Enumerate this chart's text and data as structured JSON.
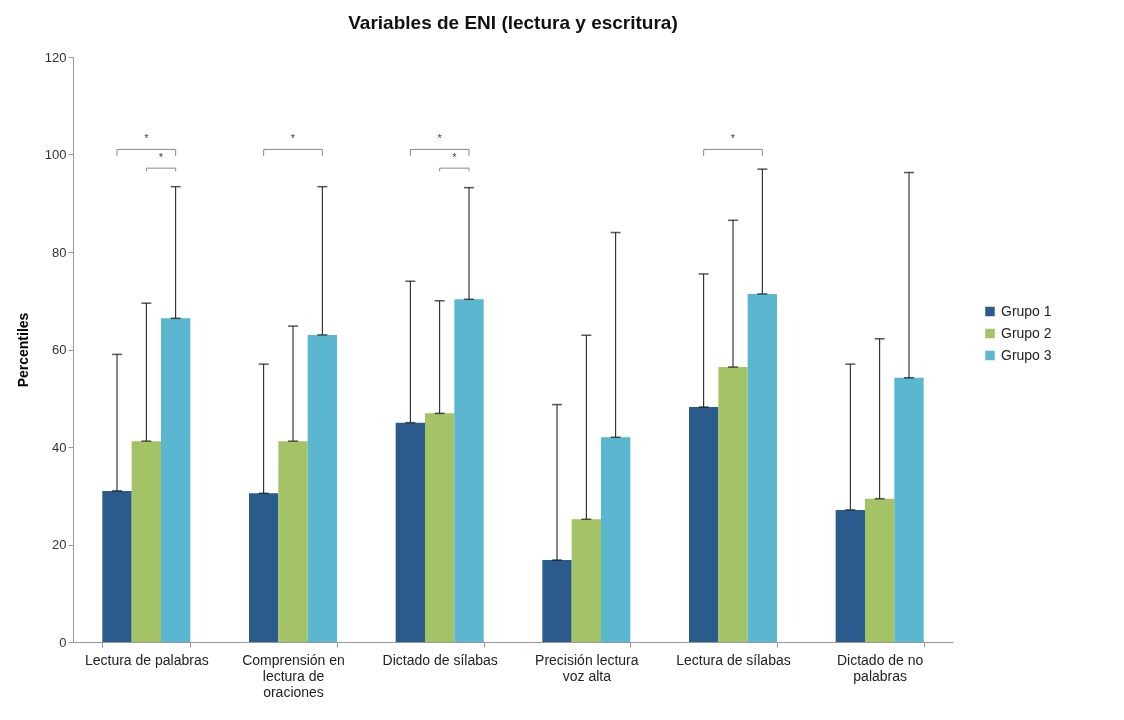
{
  "chart_data": {
    "type": "bar",
    "title": "Variables de ENI (lectura y escritura)",
    "ylabel": "Percentiles",
    "categories": [
      "Lectura de palabras",
      "Comprensión en lectura de oraciones",
      "Dictado de sílabas",
      "Precisión lectura voz alta",
      "Lectura de sílabas",
      "Dictado de no palabras"
    ],
    "series": [
      {
        "name": "Grupo 1",
        "color": "#2b5a8c",
        "values": [
          31,
          30.5,
          45,
          16.8,
          48.2,
          27.1
        ],
        "errors": [
          [
            31,
            59
          ],
          [
            30.5,
            57
          ],
          [
            45,
            74
          ],
          [
            16.8,
            48.7
          ],
          [
            48.2,
            75.5
          ],
          [
            27.1,
            57
          ]
        ]
      },
      {
        "name": "Grupo 2",
        "color": "#a4c266",
        "values": [
          41.2,
          41.2,
          46.9,
          25.2,
          56.4,
          29.4
        ],
        "errors": [
          [
            41.2,
            69.5
          ],
          [
            41.2,
            64.8
          ],
          [
            46.9,
            70
          ],
          [
            25.2,
            62.9
          ],
          [
            56.4,
            86.5
          ],
          [
            29.4,
            62.2
          ]
        ]
      },
      {
        "name": "Grupo 3",
        "color": "#5bb7d0",
        "values": [
          66.4,
          63,
          70.3,
          42,
          71.4,
          54.2
        ],
        "errors": [
          [
            66.4,
            93.4
          ],
          [
            63,
            93.4
          ],
          [
            70.3,
            93.2
          ],
          [
            42,
            84
          ],
          [
            71.4,
            97
          ],
          [
            54.2,
            96.3
          ]
        ]
      }
    ],
    "annotations": [
      "*",
      "*",
      "*",
      "*",
      "*",
      "*"
    ],
    "ylim": [
      0,
      120
    ],
    "yticks": [
      0,
      20,
      40,
      60,
      80,
      100,
      120
    ],
    "grid": false,
    "legend": "right"
  }
}
